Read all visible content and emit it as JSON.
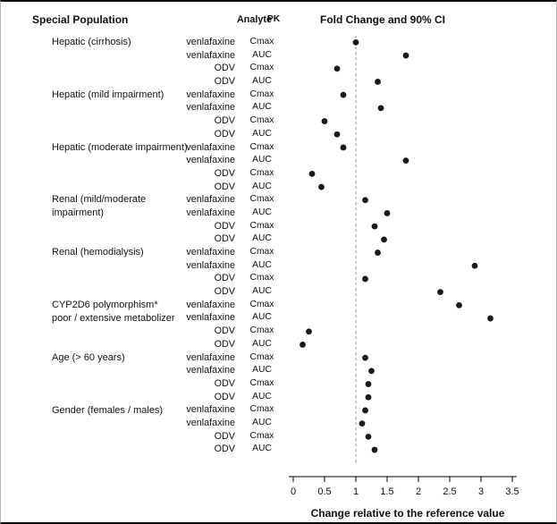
{
  "header": {
    "population": "Special Population",
    "analyte": "Analyte",
    "pk": "PK",
    "fold_change": "Fold Change and 90% CI"
  },
  "axis": {
    "xlabel": "Change relative to the reference value",
    "ticks": [
      "0",
      "0.5",
      "1",
      "1.5",
      "2",
      "2.5",
      "3",
      "3.5"
    ],
    "xlim": [
      0,
      3.5
    ],
    "reference_line": 1
  },
  "chart_data": {
    "type": "scatter",
    "title": "Fold Change and 90% CI",
    "xlabel": "Change relative to the reference value",
    "xlim": [
      0,
      3.5
    ],
    "reference_line": 1,
    "grid": false,
    "dot_color": "#1a1a1a",
    "groups": [
      {
        "population": "Hepatic (cirrhosis)",
        "rows": [
          {
            "analyte": "venlafaxine",
            "pk": "Cmax",
            "fold_change": 1.0
          },
          {
            "analyte": "venlafaxine",
            "pk": "AUC",
            "fold_change": 1.8
          },
          {
            "analyte": "ODV",
            "pk": "Cmax",
            "fold_change": 0.7
          },
          {
            "analyte": "ODV",
            "pk": "AUC",
            "fold_change": 1.35
          }
        ]
      },
      {
        "population": "Hepatic (mild impairment)",
        "rows": [
          {
            "analyte": "venlafaxine",
            "pk": "Cmax",
            "fold_change": 0.8
          },
          {
            "analyte": "venlafaxine",
            "pk": "AUC",
            "fold_change": 1.4
          },
          {
            "analyte": "ODV",
            "pk": "Cmax",
            "fold_change": 0.5
          },
          {
            "analyte": "ODV",
            "pk": "AUC",
            "fold_change": 0.7
          }
        ]
      },
      {
        "population": "Hepatic (moderate impairment)",
        "rows": [
          {
            "analyte": "venlafaxine",
            "pk": "Cmax",
            "fold_change": 0.8
          },
          {
            "analyte": "venlafaxine",
            "pk": "AUC",
            "fold_change": 1.8
          },
          {
            "analyte": "ODV",
            "pk": "Cmax",
            "fold_change": 0.3
          },
          {
            "analyte": "ODV",
            "pk": "AUC",
            "fold_change": 0.45
          }
        ]
      },
      {
        "population": "Renal (mild/moderate\nimpairment)",
        "rows": [
          {
            "analyte": "venlafaxine",
            "pk": "Cmax",
            "fold_change": 1.15
          },
          {
            "analyte": "venlafaxine",
            "pk": "AUC",
            "fold_change": 1.5
          },
          {
            "analyte": "ODV",
            "pk": "Cmax",
            "fold_change": 1.3
          },
          {
            "analyte": "ODV",
            "pk": "AUC",
            "fold_change": 1.45
          }
        ]
      },
      {
        "population": "Renal (hemodialysis)",
        "rows": [
          {
            "analyte": "venlafaxine",
            "pk": "Cmax",
            "fold_change": 1.35
          },
          {
            "analyte": "venlafaxine",
            "pk": "AUC",
            "fold_change": 2.9
          },
          {
            "analyte": "ODV",
            "pk": "Cmax",
            "fold_change": 1.15
          },
          {
            "analyte": "ODV",
            "pk": "AUC",
            "fold_change": 2.35
          }
        ]
      },
      {
        "population": "CYP2D6 polymorphism*\npoor / extensive metabolizer",
        "rows": [
          {
            "analyte": "venlafaxine",
            "pk": "Cmax",
            "fold_change": 2.65
          },
          {
            "analyte": "venlafaxine",
            "pk": "AUC",
            "fold_change": 3.15
          },
          {
            "analyte": "ODV",
            "pk": "Cmax",
            "fold_change": 0.25
          },
          {
            "analyte": "ODV",
            "pk": "AUC",
            "fold_change": 0.15
          }
        ]
      },
      {
        "population": "Age (> 60 years)",
        "rows": [
          {
            "analyte": "venlafaxine",
            "pk": "Cmax",
            "fold_change": 1.15
          },
          {
            "analyte": "venlafaxine",
            "pk": "AUC",
            "fold_change": 1.25
          },
          {
            "analyte": "ODV",
            "pk": "Cmax",
            "fold_change": 1.2
          },
          {
            "analyte": "ODV",
            "pk": "AUC",
            "fold_change": 1.2
          }
        ]
      },
      {
        "population": "Gender (females / males)",
        "rows": [
          {
            "analyte": "venlafaxine",
            "pk": "Cmax",
            "fold_change": 1.15
          },
          {
            "analyte": "venlafaxine",
            "pk": "AUC",
            "fold_change": 1.1
          },
          {
            "analyte": "ODV",
            "pk": "Cmax",
            "fold_change": 1.2
          },
          {
            "analyte": "ODV",
            "pk": "AUC",
            "fold_change": 1.3
          }
        ]
      }
    ]
  }
}
